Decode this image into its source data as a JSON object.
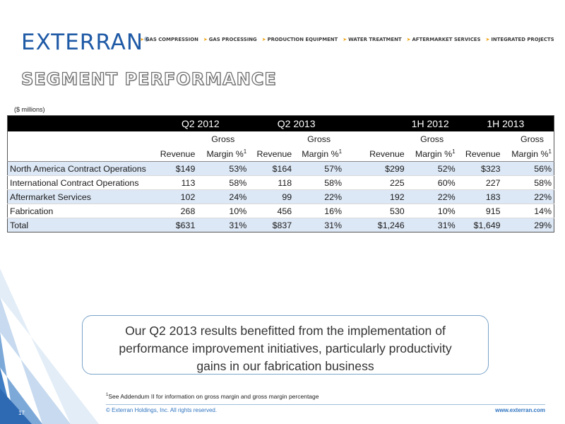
{
  "brand": {
    "logo_text": "EXTERRAN",
    "logo_mark": "®",
    "nav": [
      "GAS COMPRESSION",
      "GAS PROCESSING",
      "PRODUCTION EQUIPMENT",
      "WATER TREATMENT",
      "AFTERMARKET SERVICES",
      "INTEGRATED PROJECTS"
    ],
    "accent_color": "#f2a413",
    "brand_color": "#1f5aa6"
  },
  "title": "SEGMENT PERFORMANCE",
  "units": "($ millions)",
  "table": {
    "periods": [
      "Q2 2012",
      "Q2 2013",
      "1H 2012",
      "1H 2013"
    ],
    "sub_header_top": "Gross",
    "revenue_label": "Revenue",
    "margin_label": "Margin %",
    "margin_superscript": "1",
    "rows": [
      {
        "label": "North America Contract Operations",
        "values": [
          "$149",
          "53%",
          "$164",
          "57%",
          "$299",
          "52%",
          "$323",
          "56%"
        ]
      },
      {
        "label": "International Contract Operations",
        "values": [
          "113",
          "58%",
          "118",
          "58%",
          "225",
          "60%",
          "227",
          "58%"
        ]
      },
      {
        "label": "Aftermarket Services",
        "values": [
          "102",
          "24%",
          "99",
          "22%",
          "192",
          "22%",
          "183",
          "22%"
        ]
      },
      {
        "label": "Fabrication",
        "values": [
          "268",
          "10%",
          "456",
          "16%",
          "530",
          "10%",
          "915",
          "14%"
        ]
      },
      {
        "label": "Total",
        "values": [
          "$631",
          "31%",
          "$837",
          "31%",
          "$1,246",
          "31%",
          "$1,649",
          "29%"
        ]
      }
    ]
  },
  "callout": {
    "lines": [
      "Our Q2 2013 results benefitted from the implementation of",
      "performance improvement initiatives, particularly productivity",
      "gains in our fabrication business"
    ]
  },
  "footnote": {
    "marker": "1",
    "text": "See Addendum II for information on gross margin and gross margin percentage"
  },
  "footer": {
    "copyright": "© Exterran Holdings, Inc. All rights reserved.",
    "website": "www.exterran.com",
    "page_number": "17"
  }
}
